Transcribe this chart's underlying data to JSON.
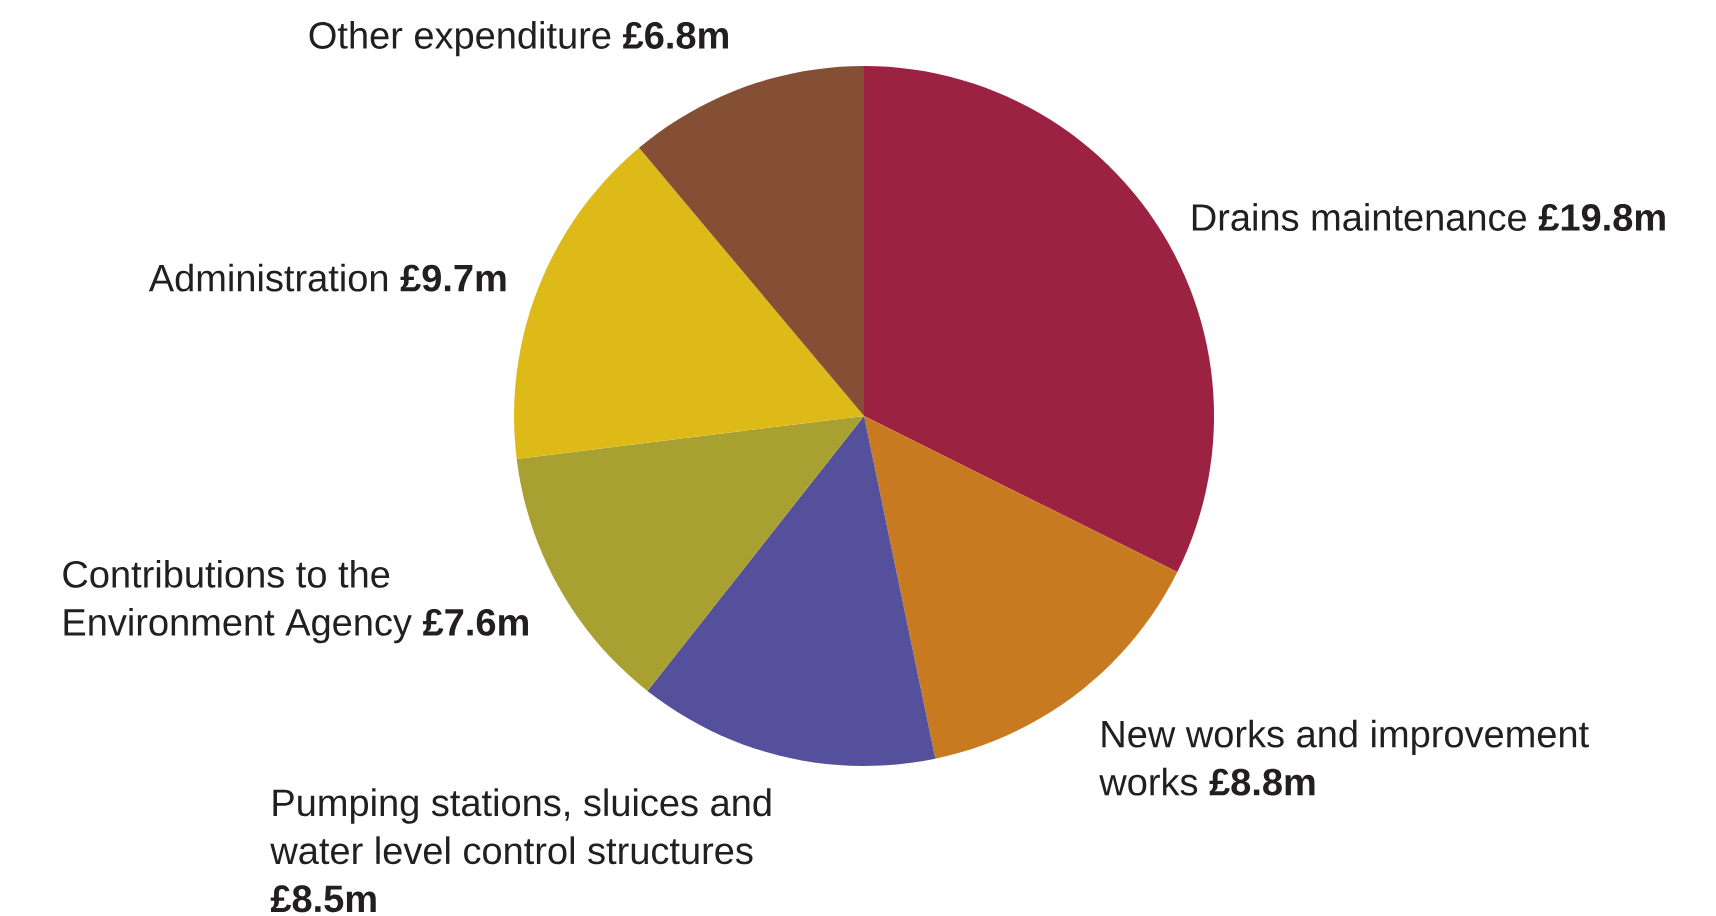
{
  "chart_data": {
    "type": "pie",
    "categories": [
      "Drains maintenance",
      "New works and improvement works",
      "Pumping stations, sluices and water level control structures",
      "Contributions to the Environment Agency",
      "Administration",
      "Other expenditure"
    ],
    "values": [
      19.8,
      8.8,
      8.5,
      7.6,
      9.7,
      6.8
    ],
    "value_labels": [
      "£19.8m",
      "£8.8m",
      "£8.5m",
      "£7.6m",
      "£9.7m",
      "£6.8m"
    ],
    "colors": [
      "#9c2241",
      "#c87a20",
      "#54509c",
      "#a8a030",
      "#deba18",
      "#854f35"
    ]
  }
}
